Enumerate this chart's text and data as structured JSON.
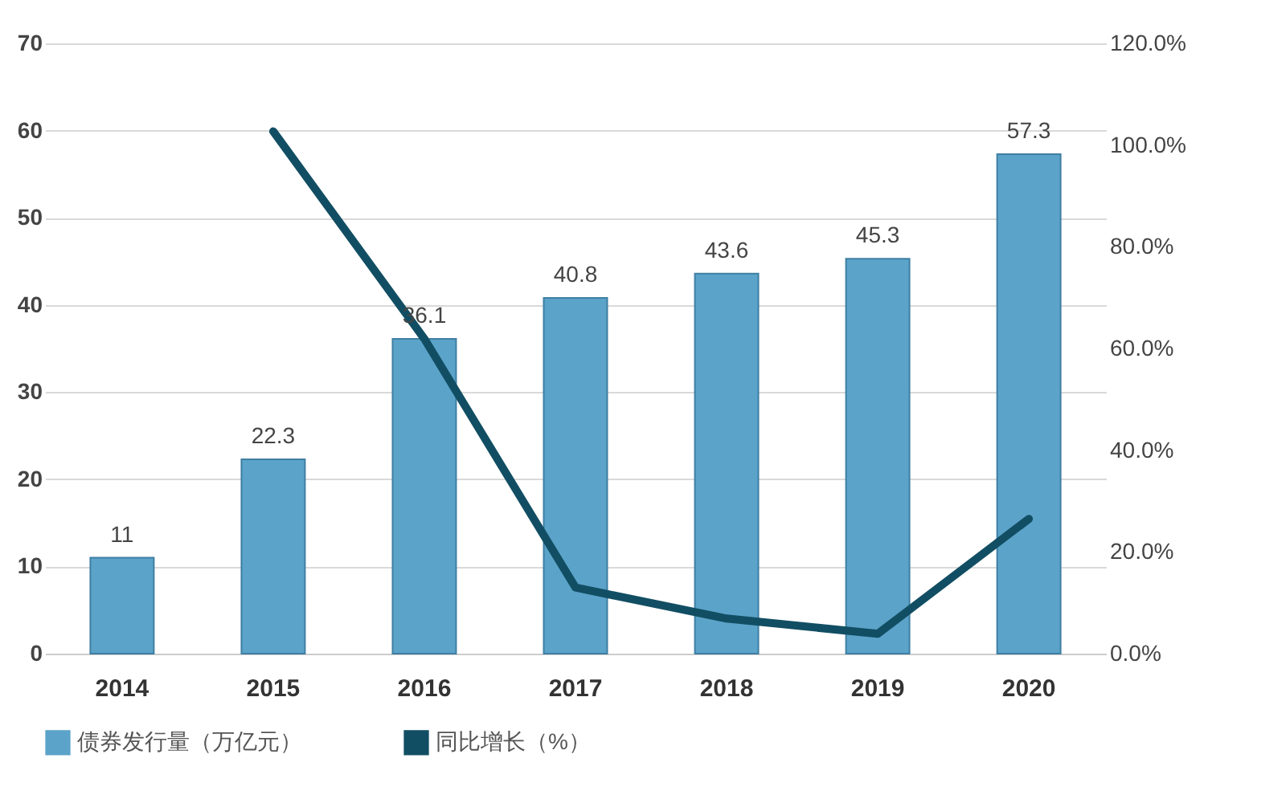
{
  "chart_data": {
    "type": "bar",
    "categories": [
      "2014",
      "2015",
      "2016",
      "2017",
      "2018",
      "2019",
      "2020"
    ],
    "series": [
      {
        "name": "债券发行量（万亿元）",
        "color": "#5ba3c9",
        "values": [
          11,
          22.3,
          36.1,
          40.8,
          43.6,
          45.3,
          57.3
        ],
        "value_labels": [
          "11",
          "22.3",
          "36.1",
          "40.8",
          "43.6",
          "45.3",
          "57.3"
        ]
      },
      {
        "name": "同比增长（%）",
        "type": "line",
        "axis": "y2",
        "color": "#124e63",
        "values": [
          null,
          102.7,
          61.9,
          13.0,
          6.9,
          3.9,
          26.5
        ]
      }
    ],
    "ylim": [
      0,
      70
    ],
    "yticks": [
      0,
      10,
      20,
      30,
      40,
      50,
      60,
      70
    ],
    "y2lim": [
      0,
      120
    ],
    "y2ticks": [
      {
        "value": 0,
        "label": "0.0%"
      },
      {
        "value": 20,
        "label": "20.0%"
      },
      {
        "value": 40,
        "label": "40.0%"
      },
      {
        "value": 60,
        "label": "60.0%"
      },
      {
        "value": 80,
        "label": "80.0%"
      },
      {
        "value": 100,
        "label": "100.0%"
      },
      {
        "value": 120,
        "label": "120.0%"
      }
    ],
    "grid": "y",
    "legend": "bottom",
    "marker": "none",
    "line_style": "solid"
  }
}
